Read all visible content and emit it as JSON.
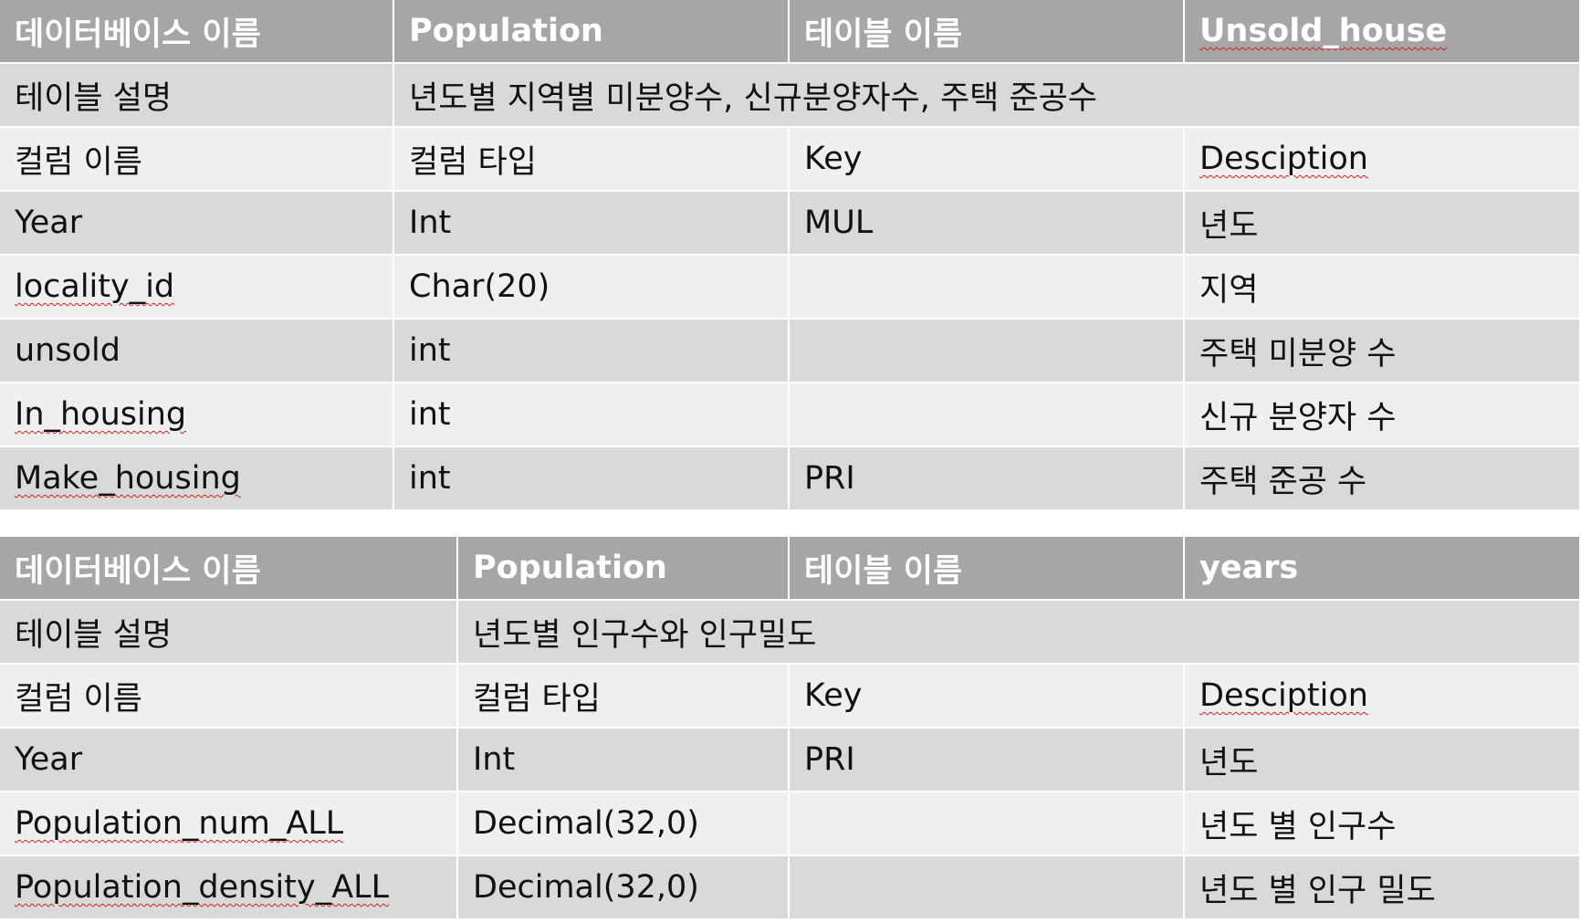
{
  "table1": {
    "header": {
      "db_label": "데이터베이스 이름",
      "db_name": "Population",
      "table_label": "테이블 이름",
      "table_name": "Unsold_house"
    },
    "description": {
      "label": "테이블 설명",
      "value": "년도별 지역별 미분양수, 신규분양자수, 주택 준공수"
    },
    "columns_header": [
      "컬럼 이름",
      "컬럼 타입",
      "Key",
      "Desciption"
    ],
    "rows": [
      [
        "Year",
        "Int",
        "MUL",
        "년도"
      ],
      [
        "locality_id",
        "Char(20)",
        "",
        "지역"
      ],
      [
        "unsold",
        "int",
        "",
        "주택 미분양 수"
      ],
      [
        "In_housing",
        "int",
        "",
        "신규 분양자 수"
      ],
      [
        "Make_housing",
        "int",
        "PRI",
        "주택 준공 수"
      ]
    ]
  },
  "table2": {
    "header": {
      "db_label": "데이터베이스 이름",
      "db_name": "Population",
      "table_label": "테이블 이름",
      "table_name": "years"
    },
    "description": {
      "label": "테이블 설명",
      "value": "년도별 인구수와 인구밀도"
    },
    "columns_header": [
      "컬럼 이름",
      "컬럼 타입",
      "Key",
      "Desciption"
    ],
    "rows": [
      [
        "Year",
        "Int",
        "PRI",
        "년도"
      ],
      [
        "Population_num_ALL",
        "Decimal(32,0)",
        "",
        "년도 별 인구수"
      ],
      [
        "Population_density_ALL",
        "Decimal(32,0)",
        "",
        "년도 별 인구 밀도"
      ]
    ]
  },
  "colors": {
    "header_bg": "#a6a6a6",
    "row_dark": "#d9d9d9",
    "row_light": "#efefef",
    "header_text": "#ffffff",
    "spellcheck_underline": "#d02020"
  }
}
